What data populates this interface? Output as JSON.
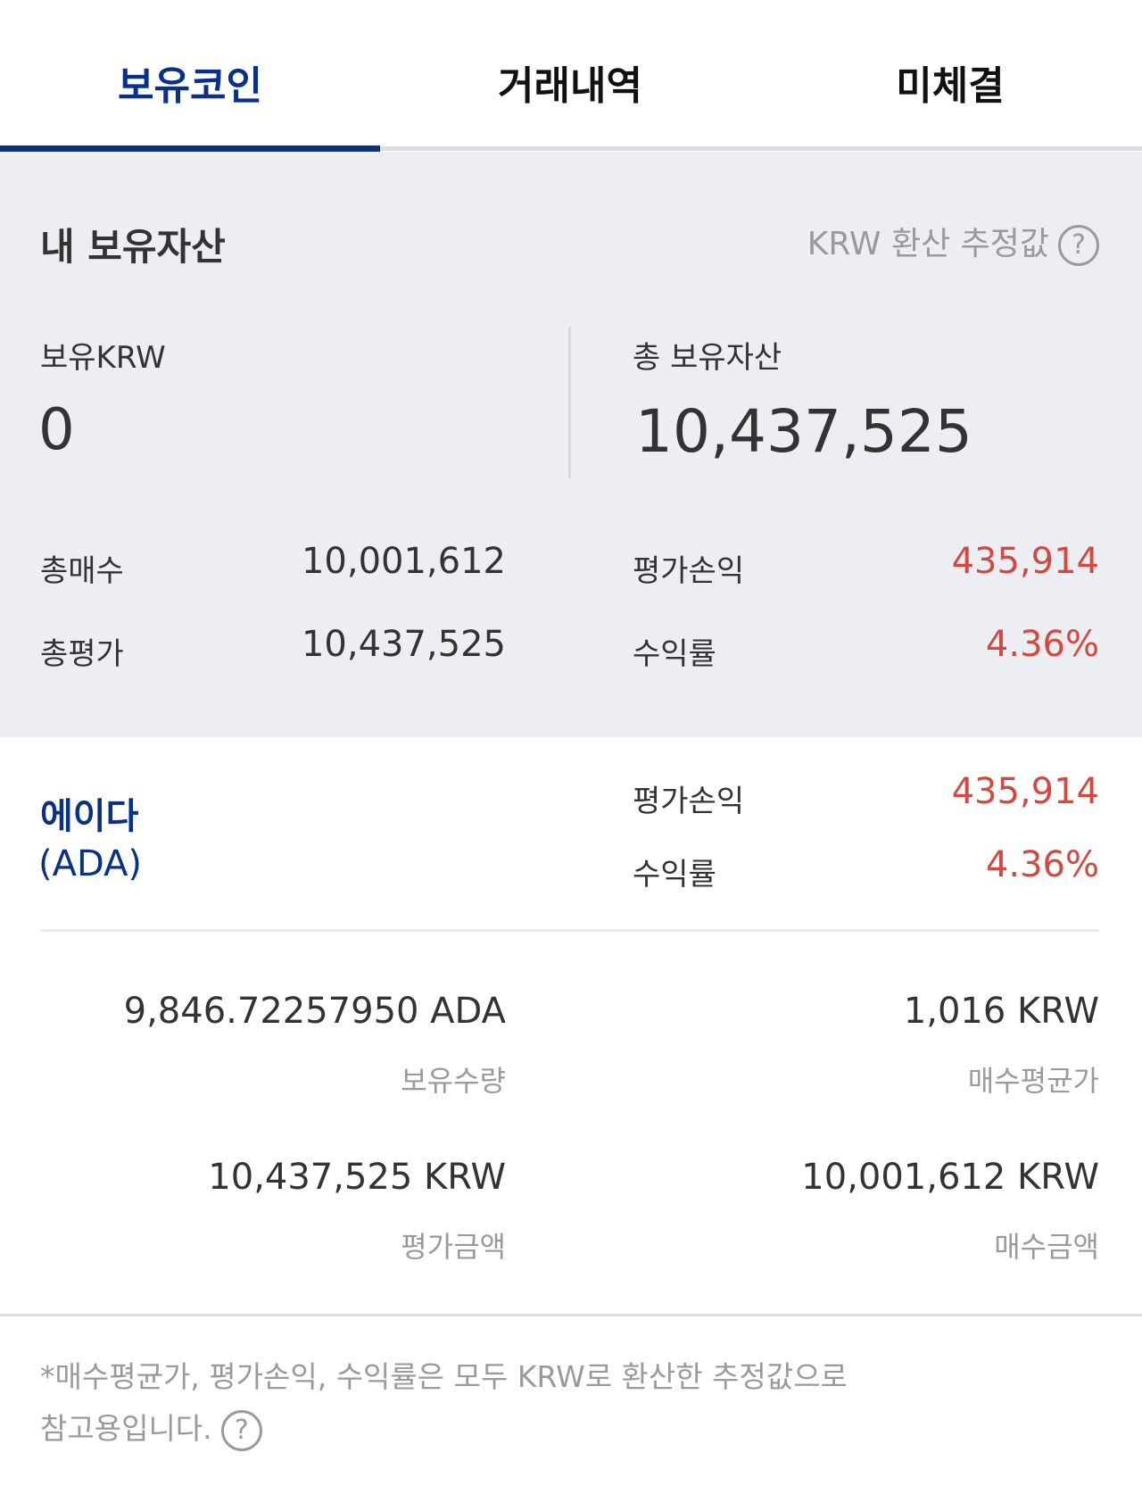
{
  "tabs": [
    {
      "label": "보유코인",
      "active": true
    },
    {
      "label": "거래내역"
    },
    {
      "label": "미체결"
    }
  ],
  "summary": {
    "title": "내 보유자산",
    "note": "KRW 환산 추정값",
    "help_icon": "?",
    "krw_label": "보유KRW",
    "krw_value": "0",
    "total_label": "총 보유자산",
    "total_value": "10,437,525",
    "buy_label": "총매수",
    "buy_value": "10,001,612",
    "eval_label": "총평가",
    "eval_value": "10,437,525",
    "pnl_label": "평가손익",
    "pnl_value": "435,914",
    "rate_label": "수익률",
    "rate_value": "4.36%"
  },
  "coin": {
    "name": "에이다",
    "symbol": "(ADA)",
    "pnl_label": "평가손익",
    "pnl_value": "435,914",
    "rate_label": "수익률",
    "rate_value": "4.36%",
    "qty_value": "9,846.72257950 ADA",
    "qty_label": "보유수량",
    "avg_value": "1,016 KRW",
    "avg_label": "매수평균가",
    "eval_value": "10,437,525 KRW",
    "eval_label": "평가금액",
    "buy_value": "10,001,612 KRW",
    "buy_label": "매수금액"
  },
  "footnote": {
    "line1": "*매수평균가, 평가손익, 수익률은 모두 KRW로 환산한 추정값으로",
    "line2": "참고용입니다.",
    "help_icon": "?"
  },
  "colors": {
    "accent": "#0a3185",
    "profit": "#d4493f",
    "panel": "#edeef3"
  }
}
